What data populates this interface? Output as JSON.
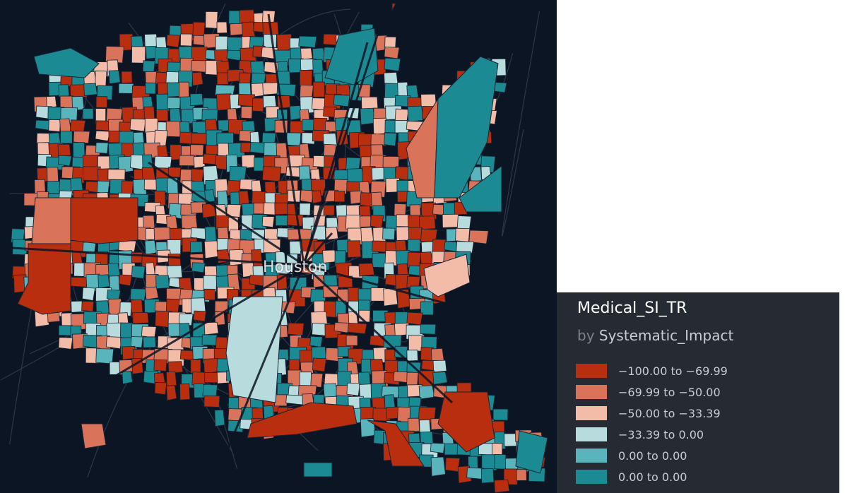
{
  "map": {
    "city_label": "Houston",
    "palette": {
      "background": "#0c1524",
      "road": "#2b3748",
      "border": "#1a2333"
    }
  },
  "legend": {
    "title": "Medical_SI_TR",
    "subtitle_prefix": "by",
    "subtitle_field": "Systematic_Impact",
    "items": [
      {
        "label": "−100.00 to −69.99",
        "color": "#b82e0e"
      },
      {
        "label": "−69.99 to −50.00",
        "color": "#d9735a"
      },
      {
        "label": "−50.00 to −33.39",
        "color": "#f2bca8"
      },
      {
        "label": "−33.39 to 0.00",
        "color": "#b8dcdd"
      },
      {
        "label": "0.00 to 0.00",
        "color": "#5ab4bb"
      },
      {
        "label": "0.00 to 0.00",
        "color": "#1b8a93"
      }
    ]
  }
}
